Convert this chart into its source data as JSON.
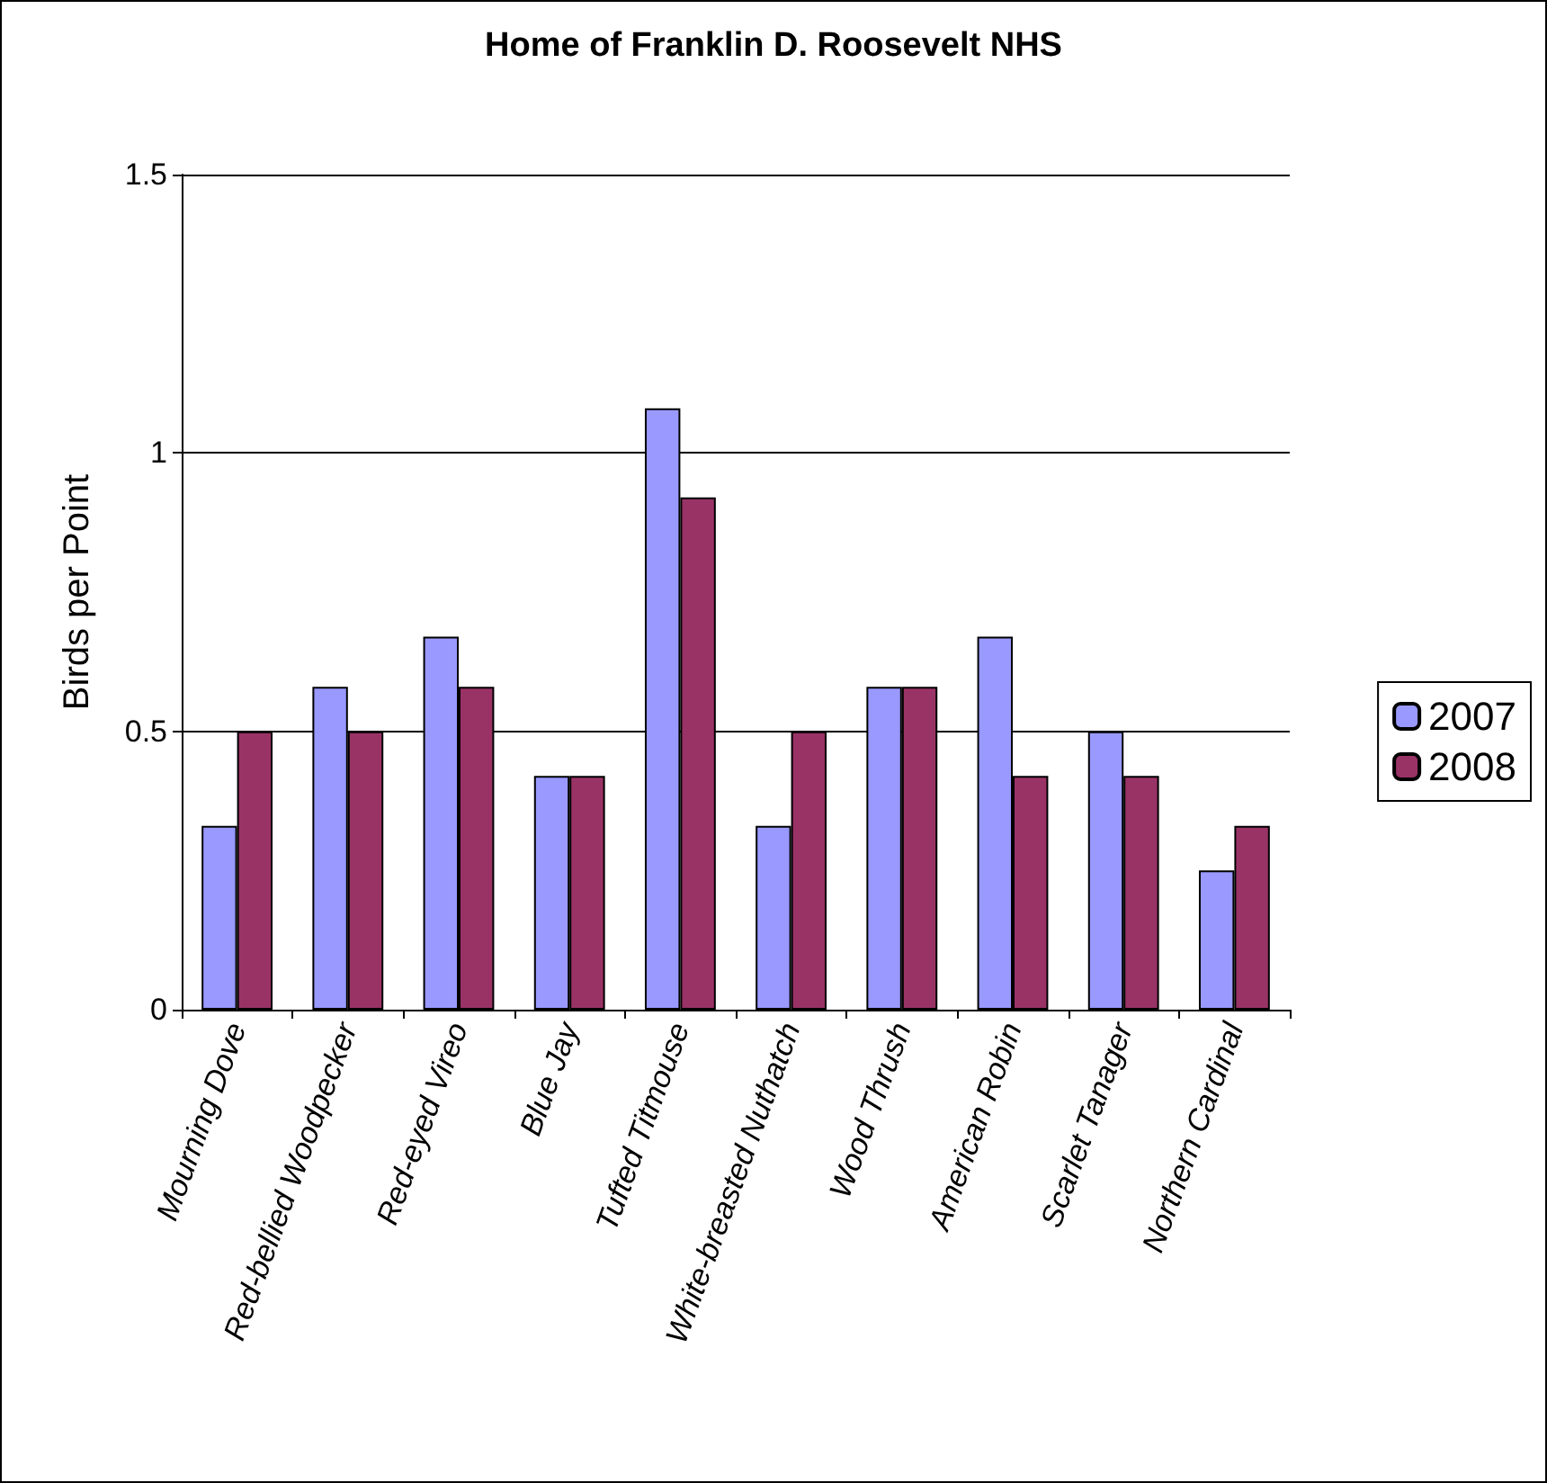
{
  "chart_data": {
    "type": "bar",
    "title": "Home of Franklin D. Roosevelt NHS",
    "ylabel": "Birds per Point",
    "categories": [
      "Mourning Dove",
      "Red-bellied Woodpecker",
      "Red-eyed Vireo",
      "Blue Jay",
      "Tufted Titmouse",
      "White-breasted Nuthatch",
      "Wood Thrush",
      "American Robin",
      "Scarlet Tanager",
      "Northern Cardinal"
    ],
    "series": [
      {
        "name": "2007",
        "color": "#9999ff",
        "values": [
          0.33,
          0.58,
          0.67,
          0.42,
          1.08,
          0.33,
          0.58,
          0.67,
          0.5,
          0.25
        ]
      },
      {
        "name": "2008",
        "color": "#993366",
        "values": [
          0.5,
          0.5,
          0.58,
          0.42,
          0.92,
          0.5,
          0.58,
          0.42,
          0.42,
          0.33
        ]
      }
    ],
    "ylim": [
      0,
      1.5
    ],
    "yticks": [
      0,
      0.5,
      1,
      1.5
    ],
    "grid": "y",
    "legend": "right"
  }
}
